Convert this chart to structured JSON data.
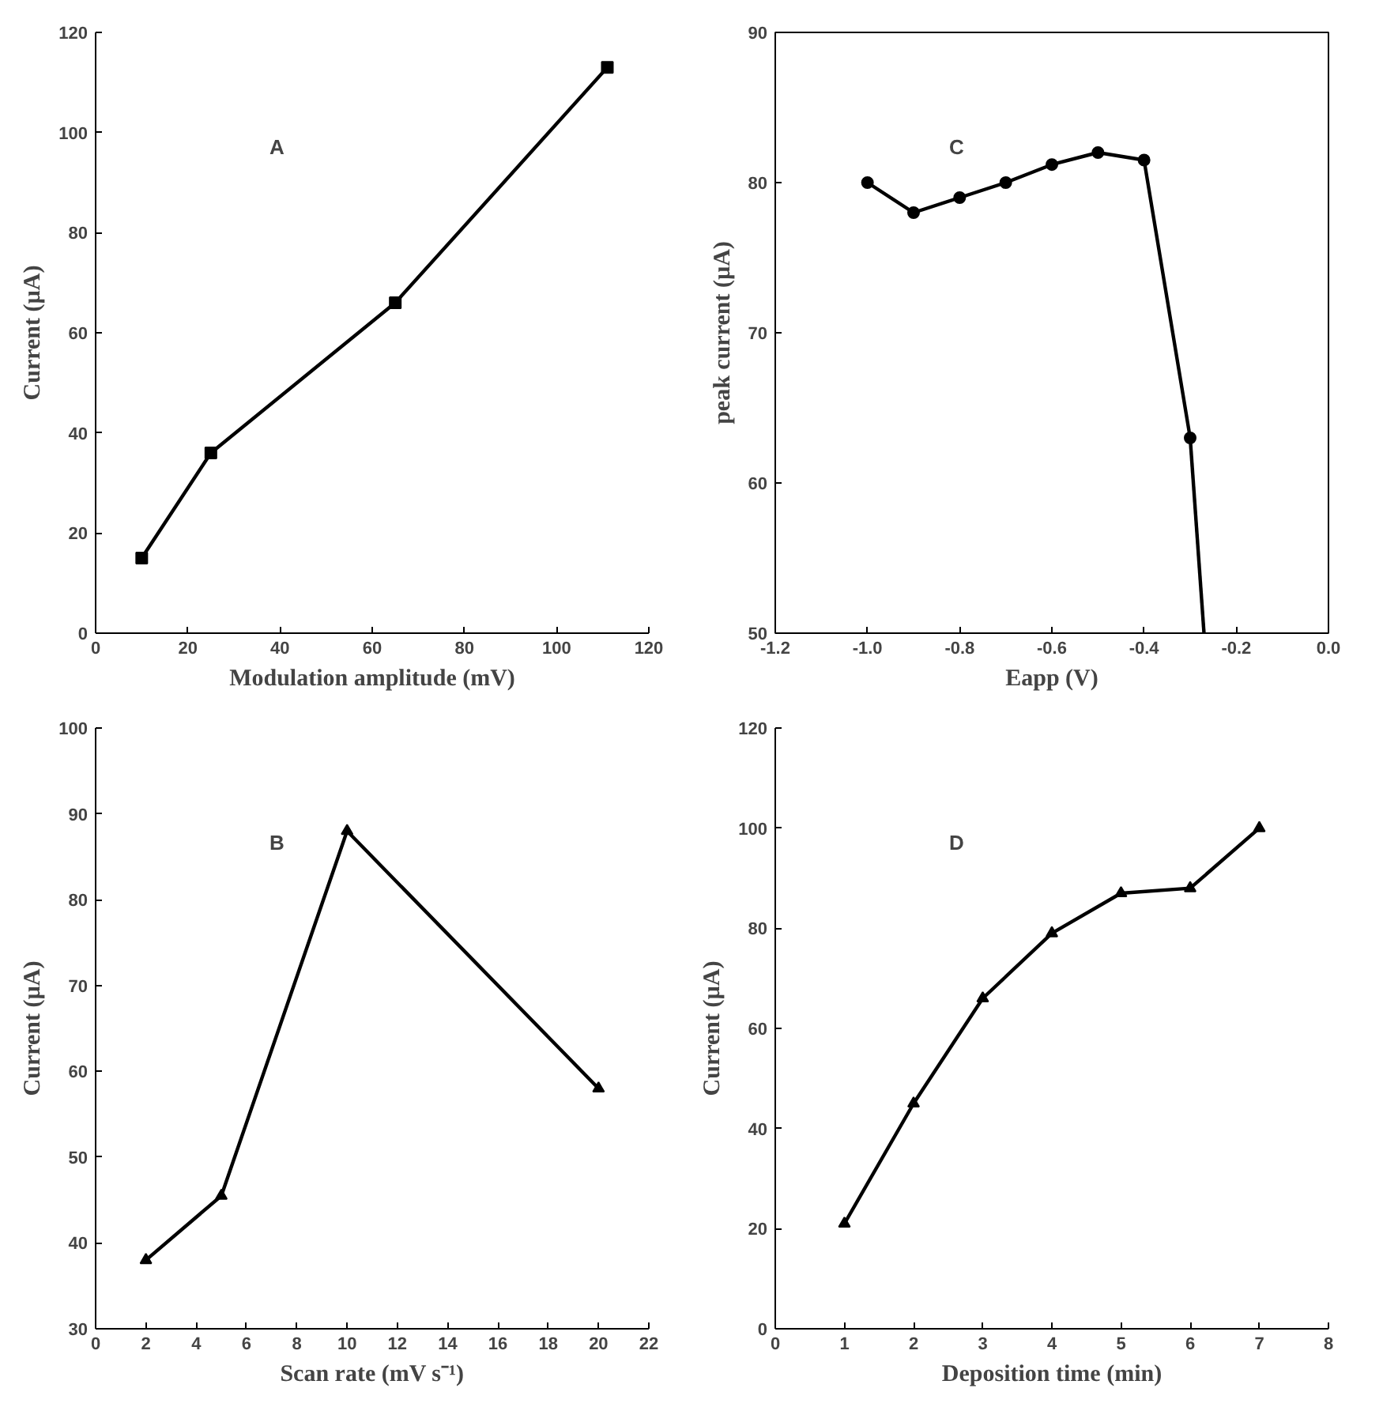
{
  "chart_data": [
    {
      "type": "line",
      "annotations": [
        "A"
      ],
      "xlabel": "Modulation amplitude (mV)",
      "ylabel": "Current (µA)",
      "xlim": [
        0,
        120
      ],
      "ylim": [
        0,
        120
      ],
      "xticks": [
        0,
        20,
        40,
        60,
        80,
        100,
        120
      ],
      "yticks": [
        0,
        20,
        40,
        60,
        80,
        100,
        120
      ],
      "marker": "square",
      "grid": false,
      "series": [
        {
          "color": "#000000",
          "x": [
            10,
            25,
            65,
            111
          ],
          "values": [
            15,
            36,
            66,
            113
          ]
        }
      ]
    },
    {
      "type": "line",
      "annotations": [
        "C"
      ],
      "xlabel": "Eapp (V)",
      "ylabel": "peak current (µA)",
      "xlim": [
        -1.2,
        0.0
      ],
      "ylim": [
        50,
        90
      ],
      "xticks": [
        {
          "value": -1.2,
          "label": "-1.2"
        },
        {
          "value": -1.0,
          "label": "-1.0"
        },
        {
          "value": -0.8,
          "label": "-0.8"
        },
        {
          "value": -0.6,
          "label": "-0.6"
        },
        {
          "value": -0.4,
          "label": "-0.4"
        },
        {
          "value": -0.2,
          "label": "-0.2"
        },
        {
          "value": 0.0,
          "label": "0.0"
        }
      ],
      "yticks": [
        50,
        60,
        70,
        80,
        90
      ],
      "marker": "circle",
      "grid": false,
      "series": [
        {
          "color": "#000000",
          "x": [
            -1.0,
            -0.9,
            -0.8,
            -0.7,
            -0.6,
            -0.5,
            -0.4,
            -0.3
          ],
          "values": [
            80,
            78,
            79,
            80,
            81.2,
            82,
            81.5,
            63
          ]
        },
        {
          "color": "#000000",
          "marker": "none",
          "x": [
            -0.3,
            -0.27
          ],
          "values": [
            63,
            50
          ]
        }
      ]
    },
    {
      "type": "line",
      "annotations": [
        "B"
      ],
      "xlabel": "Scan rate (mV s⁻¹)",
      "ylabel": "Current (µA)",
      "xlim": [
        0,
        22
      ],
      "ylim": [
        30,
        100
      ],
      "xticks": [
        0,
        2,
        4,
        6,
        8,
        10,
        12,
        14,
        16,
        18,
        20,
        22
      ],
      "yticks": [
        30,
        40,
        50,
        60,
        70,
        80,
        90,
        100
      ],
      "marker": "triangle",
      "grid": false,
      "series": [
        {
          "color": "#000000",
          "x": [
            2,
            5,
            10,
            20
          ],
          "values": [
            38,
            45.5,
            88,
            58
          ]
        }
      ]
    },
    {
      "type": "line",
      "annotations": [
        "D"
      ],
      "xlabel": "Deposition time (min)",
      "ylabel": "Current (µA)",
      "xlim": [
        0,
        8
      ],
      "ylim": [
        0,
        120
      ],
      "xticks": [
        0,
        1,
        2,
        3,
        4,
        5,
        6,
        7,
        8
      ],
      "yticks": [
        0,
        20,
        40,
        60,
        80,
        100,
        120
      ],
      "marker": "triangle",
      "grid": false,
      "series": [
        {
          "color": "#000000",
          "x": [
            1,
            2,
            3,
            4,
            5,
            6,
            7
          ],
          "values": [
            21,
            45,
            66,
            79,
            87,
            88,
            100
          ]
        }
      ]
    }
  ]
}
